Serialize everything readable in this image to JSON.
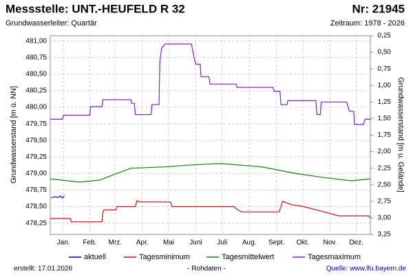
{
  "chart_data": {
    "type": "line",
    "title": "Messstelle: UNT.-HEUFELD R 32",
    "number": "Nr: 21945",
    "subtitle": "Grundwasserleiter: Quartär",
    "period": "Zeitraum: 1978 - 2026",
    "ylabel": "Grundwasserstand [m ü. NN]",
    "y2label": "Grundwasserstand [m u. Gelände]",
    "created": "erstellt:  17.01.2026",
    "note": "- Rohdaten -",
    "source": "Quelle: www.lfu.bayern.de",
    "grid": true,
    "xlim": [
      1,
      366
    ],
    "xticks": [
      {
        "value": 16,
        "label": "Jan."
      },
      {
        "value": 46,
        "label": "Feb."
      },
      {
        "value": 75,
        "label": "Mrz."
      },
      {
        "value": 106,
        "label": "Apr."
      },
      {
        "value": 136,
        "label": "Mai"
      },
      {
        "value": 167,
        "label": "Juni"
      },
      {
        "value": 197,
        "label": "Juli"
      },
      {
        "value": 228,
        "label": "Aug."
      },
      {
        "value": 259,
        "label": "Sept."
      },
      {
        "value": 289,
        "label": "Okt."
      },
      {
        "value": 320,
        "label": "Nov."
      },
      {
        "value": 350,
        "label": "Dez."
      }
    ],
    "ylim": [
      478.08,
      481.08
    ],
    "yticks": [
      {
        "value": 478.25,
        "label": "478,25"
      },
      {
        "value": 478.5,
        "label": "478,50"
      },
      {
        "value": 478.75,
        "label": "478,75"
      },
      {
        "value": 479,
        "label": "479,00"
      },
      {
        "value": 479.25,
        "label": "479,25"
      },
      {
        "value": 479.5,
        "label": "479,50"
      },
      {
        "value": 479.75,
        "label": "479,75"
      },
      {
        "value": 480,
        "label": "480,00"
      },
      {
        "value": 480.25,
        "label": "480,25"
      },
      {
        "value": 480.5,
        "label": "480,50"
      },
      {
        "value": 480.75,
        "label": "480,75"
      },
      {
        "value": 481,
        "label": "481,00"
      }
    ],
    "y2lim": [
      3.25,
      0.25
    ],
    "y2ticks": [
      {
        "value": 0.25,
        "label": "0,25"
      },
      {
        "value": 0.5,
        "label": "0,50"
      },
      {
        "value": 0.75,
        "label": "0,75"
      },
      {
        "value": 1,
        "label": "1,00"
      },
      {
        "value": 1.25,
        "label": "1,25"
      },
      {
        "value": 1.5,
        "label": "1,50"
      },
      {
        "value": 1.75,
        "label": "1,75"
      },
      {
        "value": 2,
        "label": "2,00"
      },
      {
        "value": 2.25,
        "label": "2,25"
      },
      {
        "value": 2.5,
        "label": "2,50"
      },
      {
        "value": 2.75,
        "label": "2,75"
      },
      {
        "value": 3,
        "label": "3,00"
      },
      {
        "value": 3.25,
        "label": "3,25"
      }
    ],
    "series": [
      {
        "name": "aktuell",
        "color": "#0000cc",
        "x": [
          2,
          6,
          10,
          13,
          15,
          17
        ],
        "values": [
          478.63,
          478.65,
          478.64,
          478.66,
          478.63,
          478.66
        ]
      },
      {
        "name": "Tagesminimum",
        "color": "#d01010",
        "x": [
          1,
          24,
          25,
          60,
          61,
          62,
          76,
          77,
          98,
          100,
          103,
          138,
          140,
          210,
          215,
          219,
          262,
          266,
          270,
          276,
          290,
          305,
          330,
          364,
          366
        ],
        "values": [
          478.32,
          478.32,
          478.27,
          478.27,
          478.4,
          478.45,
          478.45,
          478.5,
          478.5,
          478.59,
          478.57,
          478.57,
          478.5,
          478.5,
          478.45,
          478.42,
          478.42,
          478.58,
          478.56,
          478.53,
          478.5,
          478.45,
          478.36,
          478.36,
          478.33
        ]
      },
      {
        "name": "Tagesmittelwert",
        "color": "#108010",
        "x": [
          1,
          34,
          57,
          93,
          132,
          163,
          195,
          242,
          281,
          313,
          344,
          366
        ],
        "values": [
          478.92,
          478.87,
          478.9,
          479.08,
          479.1,
          479.13,
          479.15,
          479.1,
          479.0,
          478.94,
          478.89,
          478.92
        ]
      },
      {
        "name": "Tagesmaximum",
        "color": "#8020d0",
        "x": [
          1,
          15,
          16,
          46,
          47,
          60,
          61,
          93,
          94,
          97,
          98,
          116,
          117,
          125,
          126,
          128,
          132,
          162,
          165,
          167,
          172,
          173,
          182,
          183,
          213,
          214,
          255,
          256,
          263,
          264,
          271,
          272,
          304,
          305,
          309,
          310,
          339,
          342,
          347,
          348,
          358,
          360,
          366
        ],
        "values": [
          479.82,
          479.82,
          479.88,
          479.88,
          480.01,
          480.01,
          480.115,
          480.115,
          480.06,
          480.06,
          479.89,
          479.89,
          480.04,
          480.04,
          480.69,
          480.89,
          480.955,
          480.955,
          480.75,
          480.65,
          480.65,
          480.46,
          480.46,
          480.35,
          480.35,
          480.3,
          480.3,
          480.24,
          480.24,
          480.04,
          480.04,
          480.1,
          480.1,
          479.89,
          479.89,
          480.08,
          480.08,
          479.94,
          479.94,
          479.74,
          479.74,
          479.82,
          479.82
        ]
      }
    ]
  }
}
